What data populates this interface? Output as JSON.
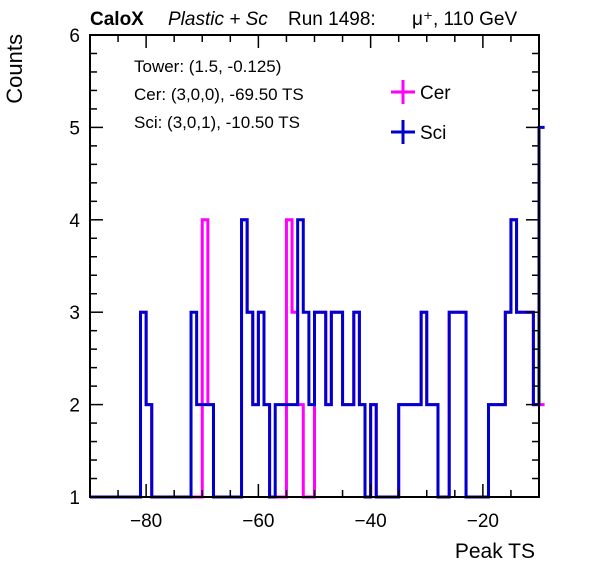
{
  "chart_data": {
    "type": "step-histogram",
    "header": {
      "experiment": "CaloX",
      "material": "Plastic + Sc",
      "run": "Run 1498:",
      "beam": "μ⁺, 110 GeV"
    },
    "xlabel": "Peak TS",
    "ylabel": "Counts",
    "xlim": [
      -90,
      -10
    ],
    "ylim": [
      1,
      6
    ],
    "x_ticks": [
      -80,
      -60,
      -40,
      -20
    ],
    "y_ticks": [
      1,
      2,
      3,
      4,
      5,
      6
    ],
    "grid": false,
    "annotations": [
      "Tower: (1.5, -0.125)",
      "Cer: (3,0,0), -69.50 TS",
      "Sci: (3,0,1), -10.50 TS"
    ],
    "legend_position": "top-right",
    "x_bin_width": 1,
    "x_bin_start": -90,
    "series": [
      {
        "name": "Cer",
        "color": "#ff00ff",
        "values": [
          1,
          1,
          1,
          1,
          1,
          1,
          1,
          1,
          1,
          3,
          2,
          1,
          1,
          1,
          1,
          1,
          1,
          1,
          1,
          1,
          4,
          2,
          1,
          1,
          1,
          1,
          1,
          4,
          3,
          2,
          3,
          2,
          1,
          1,
          1,
          4,
          3,
          2,
          1,
          1,
          3,
          3,
          2,
          3,
          3,
          2,
          2,
          3,
          2,
          1,
          2,
          1,
          1,
          1,
          1,
          2,
          2,
          2,
          2,
          3,
          2,
          2,
          1,
          1,
          3,
          3,
          3,
          1,
          1,
          1,
          1,
          2,
          2,
          2,
          3,
          4,
          3,
          3,
          3,
          2,
          2
        ]
      },
      {
        "name": "Sci",
        "color": "#0000cc",
        "values": [
          1,
          1,
          1,
          1,
          1,
          1,
          1,
          1,
          1,
          3,
          2,
          1,
          1,
          1,
          1,
          1,
          1,
          1,
          3,
          2,
          2,
          2,
          1,
          1,
          1,
          1,
          1,
          4,
          3,
          2,
          3,
          2,
          1,
          2,
          2,
          2,
          2,
          4,
          3,
          2,
          3,
          3,
          2,
          3,
          3,
          2,
          2,
          3,
          2,
          1,
          2,
          1,
          1,
          1,
          1,
          2,
          2,
          2,
          2,
          3,
          2,
          2,
          1,
          1,
          3,
          3,
          3,
          1,
          1,
          1,
          1,
          2,
          2,
          2,
          3,
          4,
          3,
          3,
          3,
          2,
          5
        ]
      }
    ]
  }
}
